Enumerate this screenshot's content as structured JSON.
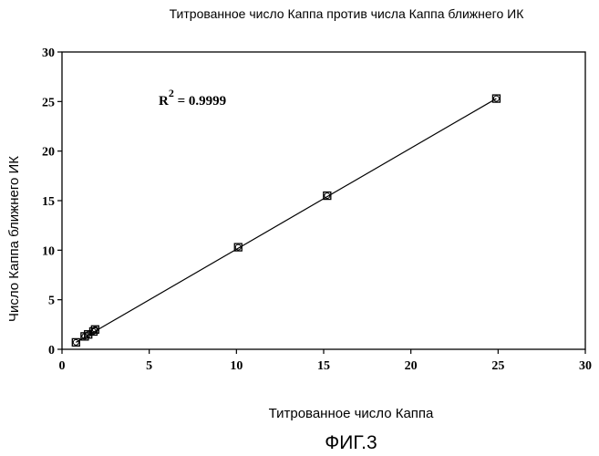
{
  "chart_data": {
    "type": "scatter",
    "title": "Титрованное число Каппа против числа Каппа ближнего ИК",
    "xlabel": "Титрованное число Каппа",
    "ylabel": "Число Каппа ближнего ИК",
    "xlim": [
      0,
      30
    ],
    "ylim": [
      0,
      30
    ],
    "x_ticks": [
      0,
      5,
      10,
      15,
      20,
      25,
      30
    ],
    "y_ticks": [
      0,
      5,
      10,
      15,
      20,
      25,
      30
    ],
    "grid": false,
    "legend": "none",
    "annotation": {
      "base": "R",
      "sup": "2",
      "rest": " = 0.9999"
    },
    "series": [
      {
        "points": [
          {
            "x": 0.8,
            "y": 0.7
          },
          {
            "x": 1.3,
            "y": 1.3
          },
          {
            "x": 1.5,
            "y": 1.5
          },
          {
            "x": 1.8,
            "y": 1.8
          },
          {
            "x": 1.9,
            "y": 2.0
          },
          {
            "x": 10.1,
            "y": 10.3
          },
          {
            "x": 15.2,
            "y": 15.5
          },
          {
            "x": 24.9,
            "y": 25.3
          }
        ]
      }
    ],
    "fit_line": {
      "x": [
        0.8,
        24.9
      ],
      "y": [
        0.7,
        25.3
      ]
    },
    "colors": {
      "ink": "#000000",
      "background": "#ffffff"
    }
  },
  "caption": "ФИГ.3"
}
